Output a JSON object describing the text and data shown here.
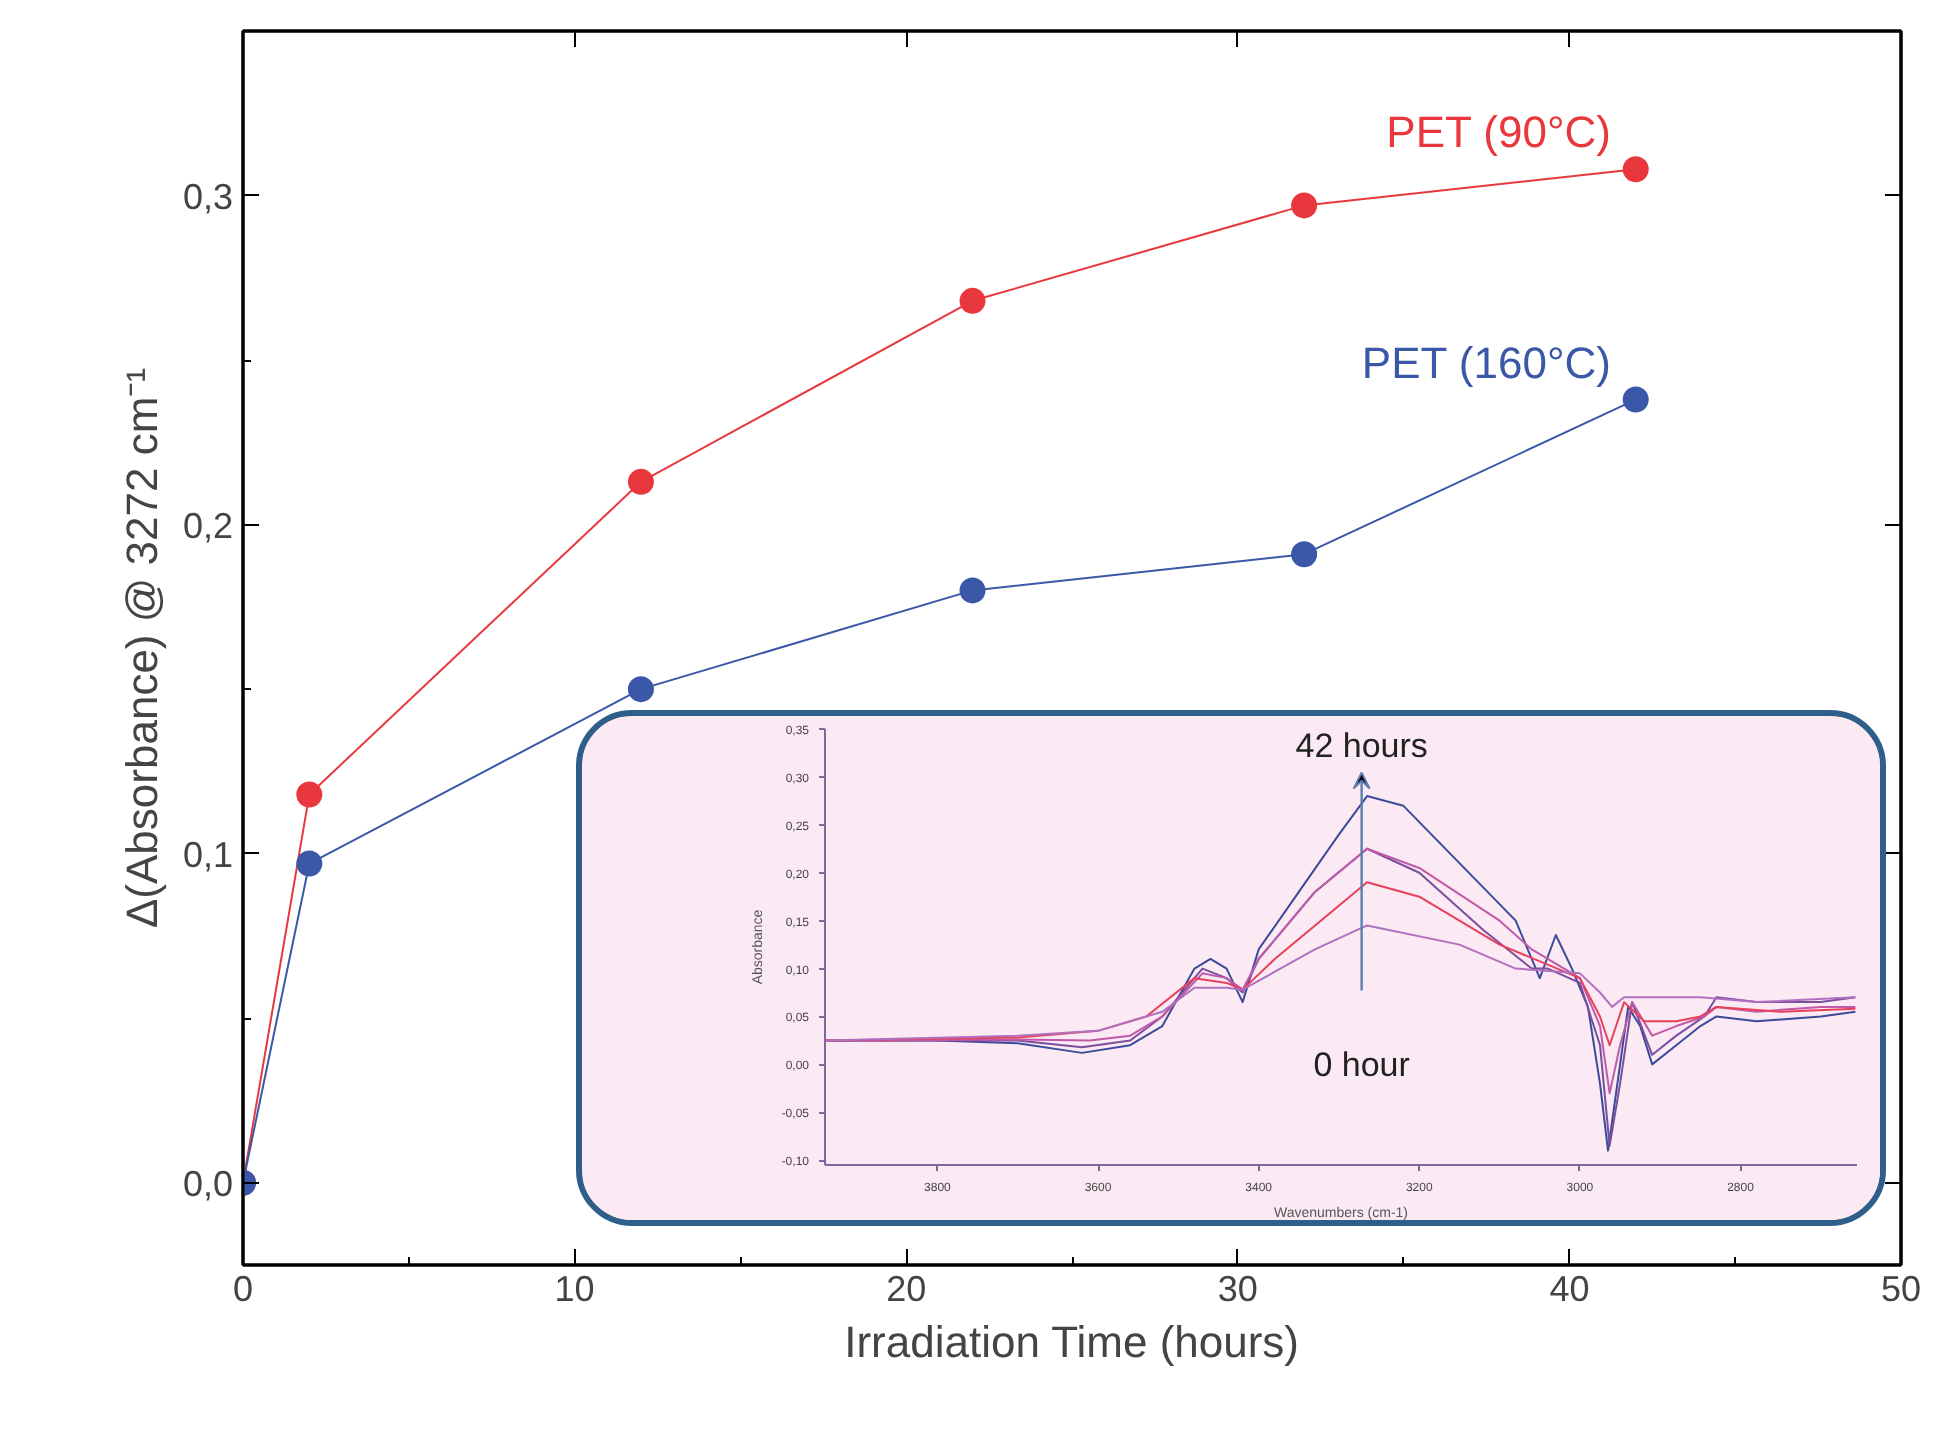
{
  "chart_data": [
    {
      "type": "line",
      "xlabel": "Irradiation Time (hours)",
      "ylabel": "Δ(Absorbance) @ 3272 cm⁻¹",
      "x": [
        0,
        2,
        12,
        22,
        32,
        42
      ],
      "series": [
        {
          "name": "PET (90°C)",
          "color": "#e8383d",
          "values": [
            0,
            0.118,
            0.213,
            0.268,
            0.297,
            0.308
          ]
        },
        {
          "name": "PET (160°C)",
          "color": "#3a57a8",
          "values": [
            0,
            0.097,
            0.15,
            0.18,
            0.191,
            0.238
          ]
        }
      ],
      "xlim": [
        0,
        50
      ],
      "ylim": [
        -0.025,
        0.35
      ],
      "xticks": [
        0,
        10,
        20,
        30,
        40,
        50
      ],
      "yticks": [
        {
          "value": 0,
          "label": "0,0"
        },
        {
          "value": 0.1,
          "label": "0,1"
        },
        {
          "value": 0.2,
          "label": "0,2"
        },
        {
          "value": 0.3,
          "label": "0,3"
        }
      ],
      "marker": "circle",
      "line_style": "solid",
      "grid": false
    },
    {
      "type": "line",
      "xlabel": "Wavenumbers (cm-1)",
      "ylabel": "Absorbance",
      "annotations": [
        "42 hours",
        "0 hour"
      ],
      "series": [
        {
          "color": "#3b4a9a",
          "x": [
            3940,
            3800,
            3700,
            3620,
            3560,
            3520,
            3480,
            3460,
            3440,
            3420,
            3400,
            3350,
            3300,
            3265,
            3220,
            3150,
            3080,
            3050,
            3030,
            3010,
            2990,
            2975,
            2965,
            2955,
            2940,
            2925,
            2910,
            2880,
            2850,
            2830,
            2780,
            2700,
            2657
          ],
          "values": [
            0.025,
            0.025,
            0.022,
            0.012,
            0.02,
            0.04,
            0.1,
            0.11,
            0.1,
            0.065,
            0.12,
            0.18,
            0.24,
            0.28,
            0.27,
            0.21,
            0.15,
            0.09,
            0.135,
            0.1,
            0.06,
            -0.02,
            -0.09,
            -0.03,
            0.06,
            0.04,
            0.0,
            0.02,
            0.04,
            0.05,
            0.045,
            0.05,
            0.055
          ]
        },
        {
          "color": "#7a4f9e",
          "x": [
            3940,
            3700,
            3620,
            3560,
            3520,
            3470,
            3440,
            3420,
            3400,
            3330,
            3265,
            3200,
            3120,
            3060,
            3040,
            3000,
            2975,
            2963,
            2950,
            2935,
            2910,
            2880,
            2845,
            2830,
            2780,
            2700,
            2657
          ],
          "values": [
            0.025,
            0.025,
            0.018,
            0.025,
            0.05,
            0.1,
            0.09,
            0.075,
            0.11,
            0.18,
            0.225,
            0.2,
            0.14,
            0.1,
            0.1,
            0.085,
            0.02,
            -0.085,
            -0.02,
            0.065,
            0.01,
            0.03,
            0.05,
            0.07,
            0.065,
            0.065,
            0.07
          ]
        },
        {
          "color": "#c05aa8",
          "x": [
            3940,
            3700,
            3610,
            3560,
            3520,
            3470,
            3440,
            3420,
            3400,
            3330,
            3265,
            3200,
            3100,
            3060,
            3040,
            3000,
            2975,
            2963,
            2950,
            2935,
            2910,
            2880,
            2845,
            2830,
            2780,
            2700,
            2657
          ],
          "values": [
            0.025,
            0.026,
            0.025,
            0.03,
            0.05,
            0.095,
            0.09,
            0.078,
            0.11,
            0.18,
            0.225,
            0.205,
            0.15,
            0.12,
            0.11,
            0.09,
            0.04,
            -0.03,
            0.02,
            0.065,
            0.03,
            0.04,
            0.05,
            0.06,
            0.055,
            0.06,
            0.06
          ]
        },
        {
          "color": "#e8405a",
          "x": [
            3940,
            3700,
            3600,
            3540,
            3480,
            3440,
            3420,
            3380,
            3265,
            3200,
            3100,
            3000,
            2975,
            2963,
            2945,
            2920,
            2880,
            2850,
            2830,
            2750,
            2657
          ],
          "values": [
            0.025,
            0.028,
            0.035,
            0.05,
            0.09,
            0.085,
            0.078,
            0.11,
            0.19,
            0.175,
            0.125,
            0.09,
            0.05,
            0.02,
            0.065,
            0.045,
            0.045,
            0.05,
            0.06,
            0.055,
            0.058
          ]
        },
        {
          "color": "#b070c0",
          "x": [
            3940,
            3700,
            3600,
            3520,
            3480,
            3440,
            3420,
            3330,
            3265,
            3150,
            3080,
            3000,
            2975,
            2960,
            2945,
            2900,
            2850,
            2780,
            2657
          ],
          "values": [
            0.025,
            0.03,
            0.035,
            0.055,
            0.08,
            0.08,
            0.078,
            0.12,
            0.145,
            0.125,
            0.1,
            0.095,
            0.075,
            0.06,
            0.07,
            0.07,
            0.07,
            0.065,
            0.07
          ]
        }
      ],
      "xlim": [
        3940,
        2655
      ],
      "ylim": [
        -0.105,
        0.35
      ],
      "xticks": [
        3800,
        3600,
        3400,
        3200,
        3000,
        2800
      ],
      "yticks": [
        {
          "value": 0.35,
          "label": "0,35"
        },
        {
          "value": 0.3,
          "label": "0,30"
        },
        {
          "value": 0.25,
          "label": "0,25"
        },
        {
          "value": 0.2,
          "label": "0,20"
        },
        {
          "value": 0.15,
          "label": "0,15"
        },
        {
          "value": 0.1,
          "label": "0,10"
        },
        {
          "value": 0.05,
          "label": "0,05"
        },
        {
          "value": 0,
          "label": "0,00"
        },
        {
          "value": -0.05,
          "label": "-0,05"
        },
        {
          "value": -0.1,
          "label": "-0,10"
        }
      ],
      "marker": "none",
      "line_style": "solid",
      "grid": false
    }
  ]
}
